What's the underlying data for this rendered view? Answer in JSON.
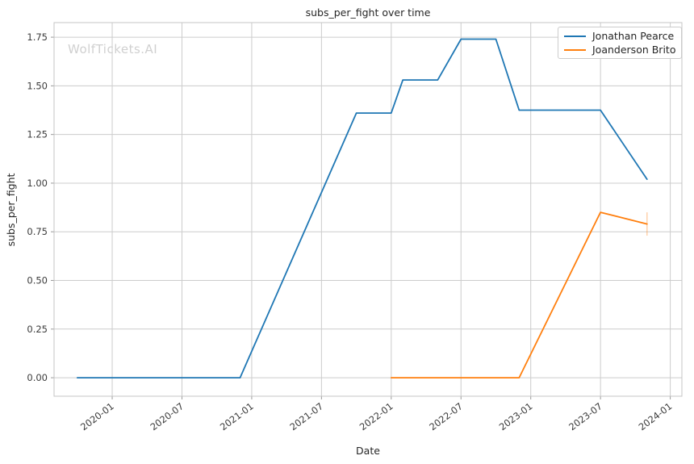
{
  "figure": {
    "watermark": "WolfTickets.AI"
  },
  "colors": {
    "background": "#ffffff",
    "grid": "#cccccc",
    "spine": "#c4c4c4",
    "tick_mark": "#9a9a9a",
    "tick_label": "#3b3b3b",
    "text": "#262626",
    "watermark": "#d0d0d0",
    "series_blue": "#1f77b4",
    "series_orange": "#ff7f0e"
  },
  "chart_data": {
    "type": "line",
    "title": "subs_per_fight over time",
    "xlabel": "Date",
    "ylabel": "subs_per_fight",
    "grid": true,
    "legend_position": "upper right",
    "x_tick_labels": [
      "2020-01",
      "2020-07",
      "2021-01",
      "2021-07",
      "2022-01",
      "2022-07",
      "2023-01",
      "2023-07",
      "2024-01"
    ],
    "y_tick_labels": [
      "0.00",
      "0.25",
      "0.50",
      "0.75",
      "1.00",
      "1.25",
      "1.50",
      "1.75"
    ],
    "x_range": [
      "2019-08",
      "2024-02"
    ],
    "y_range": [
      -0.095,
      1.825
    ],
    "series": [
      {
        "name": "Jonathan Pearce",
        "color": "#1f77b4",
        "points": [
          [
            "2019-10",
            0.0
          ],
          [
            "2020-12",
            0.0
          ],
          [
            "2021-10",
            1.36
          ],
          [
            "2022-01",
            1.36
          ],
          [
            "2022-02",
            1.53
          ],
          [
            "2022-05",
            1.53
          ],
          [
            "2022-07",
            1.74
          ],
          [
            "2022-10",
            1.74
          ],
          [
            "2022-12",
            1.375
          ],
          [
            "2023-07",
            1.375
          ],
          [
            "2023-11",
            1.02
          ]
        ]
      },
      {
        "name": "Joanderson Brito",
        "color": "#ff7f0e",
        "points": [
          [
            "2022-01",
            0.0
          ],
          [
            "2022-12",
            0.0
          ],
          [
            "2023-07",
            0.85
          ],
          [
            "2023-11",
            0.79
          ]
        ],
        "error_bar": {
          "x": "2023-11",
          "y_low": 0.73,
          "y_high": 0.85
        }
      }
    ]
  }
}
